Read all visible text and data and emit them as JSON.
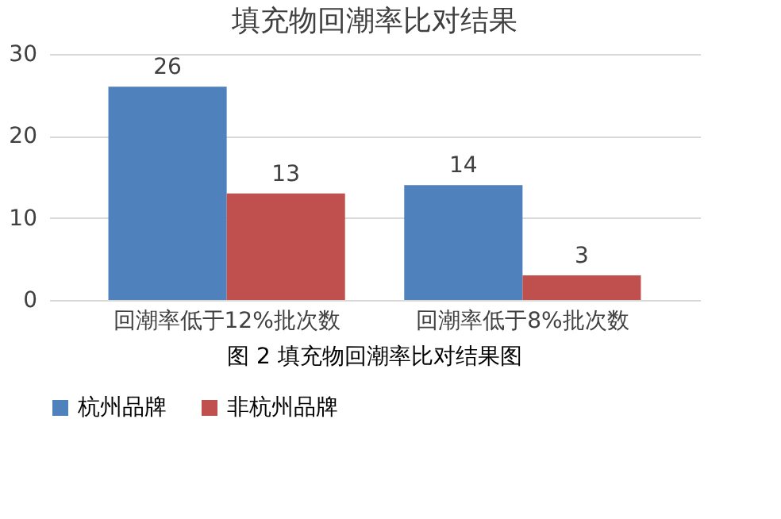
{
  "chart_data": {
    "type": "bar",
    "title": "填充物回潮率比对结果",
    "categories": [
      "回潮率低于12%批次数",
      "回潮率低于8%批次数"
    ],
    "series": [
      {
        "name": "杭州品牌",
        "color": "#4f81bd",
        "values": [
          26,
          14
        ]
      },
      {
        "name": "非杭州品牌",
        "color": "#c0504d",
        "values": [
          13,
          3
        ]
      }
    ],
    "ylim": [
      0,
      30
    ],
    "yticks": [
      0,
      10,
      20,
      30
    ],
    "grid": "y",
    "legend": "bottom",
    "data_labels": true,
    "annotations": [
      "图 2   填充物回潮率比对结果图"
    ]
  }
}
